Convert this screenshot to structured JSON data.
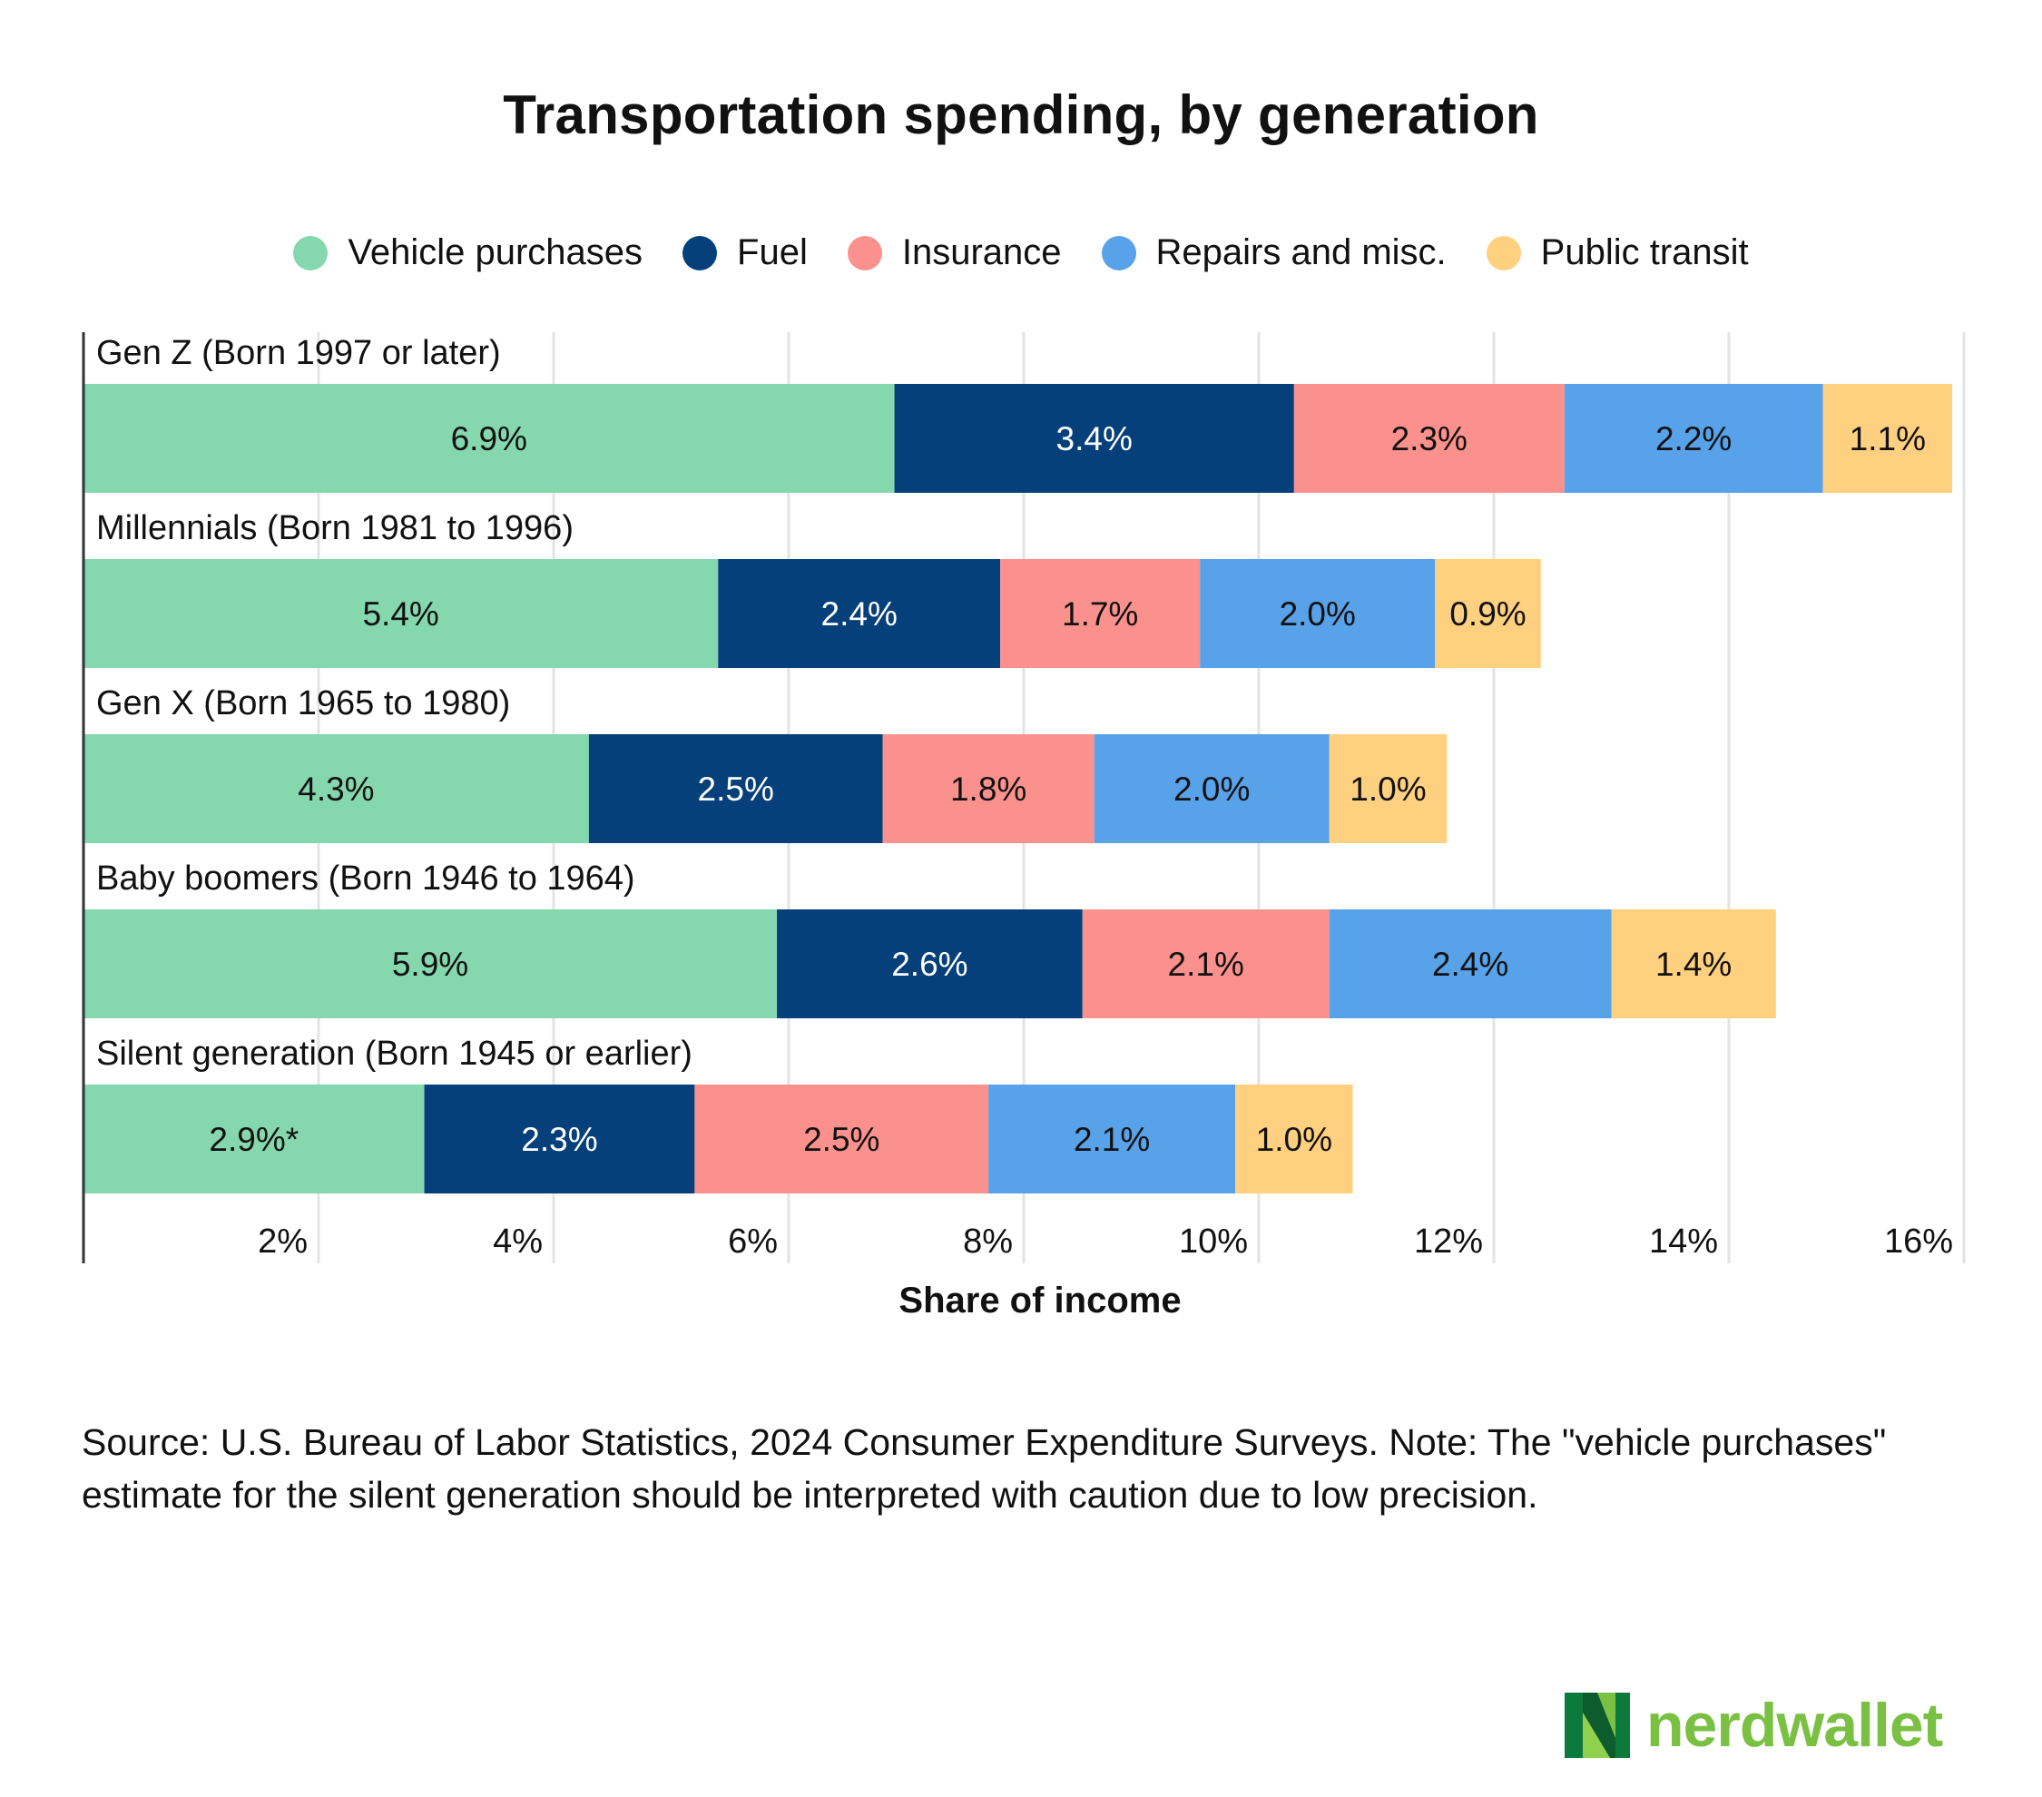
{
  "title": "Transportation spending, by generation",
  "source": "Source: U.S. Bureau of Labor Statistics, 2024 Consumer Expenditure Surveys. Note: The \"vehicle purchases\" estimate for the silent generation should be interpreted with caution due to low precision.",
  "logo": {
    "text": "nerdwallet",
    "icon": "nerdwallet-n-icon"
  },
  "legend": [
    {
      "label": "Vehicle purchases",
      "color": "#85d7ad"
    },
    {
      "label": "Fuel",
      "color": "#05407a"
    },
    {
      "label": "Insurance",
      "color": "#fb918d"
    },
    {
      "label": "Repairs and misc.",
      "color": "#57a2e8"
    },
    {
      "label": "Public transit",
      "color": "#fed07f"
    }
  ],
  "chart_data": {
    "type": "bar",
    "orientation": "horizontal",
    "stacked": true,
    "title": "Transportation spending, by generation",
    "xlabel": "Share of income",
    "ylabel": "",
    "xlim": [
      0,
      16
    ],
    "xticks": [
      2,
      4,
      6,
      8,
      10,
      12,
      14,
      16
    ],
    "xtick_labels": [
      "2%",
      "4%",
      "6%",
      "8%",
      "10%",
      "12%",
      "14%",
      "16%"
    ],
    "grid": "vertical",
    "legend_position": "top",
    "categories": [
      "Gen Z (Born 1997 or later)",
      "Millennials (Born 1981 to 1996)",
      "Gen X (Born 1965 to 1980)",
      "Baby boomers (Born 1946 to 1964)",
      "Silent generation (Born 1945 or earlier)"
    ],
    "series": [
      {
        "name": "Vehicle purchases",
        "color": "#85d7ad",
        "text_color": "#111111",
        "values": [
          6.9,
          5.4,
          4.3,
          5.9,
          2.9
        ],
        "labels": [
          "6.9%",
          "5.4%",
          "4.3%",
          "5.9%",
          "2.9%*"
        ]
      },
      {
        "name": "Fuel",
        "color": "#05407a",
        "text_color": "#ffffff",
        "values": [
          3.4,
          2.4,
          2.5,
          2.6,
          2.3
        ],
        "labels": [
          "3.4%",
          "2.4%",
          "2.5%",
          "2.6%",
          "2.3%"
        ]
      },
      {
        "name": "Insurance",
        "color": "#fb918d",
        "text_color": "#111111",
        "values": [
          2.3,
          1.7,
          1.8,
          2.1,
          2.5
        ],
        "labels": [
          "2.3%",
          "1.7%",
          "1.8%",
          "2.1%",
          "2.5%"
        ]
      },
      {
        "name": "Repairs and misc.",
        "color": "#57a2e8",
        "text_color": "#111111",
        "values": [
          2.2,
          2.0,
          2.0,
          2.4,
          2.1
        ],
        "labels": [
          "2.2%",
          "2.0%",
          "2.0%",
          "2.4%",
          "2.1%"
        ]
      },
      {
        "name": "Public transit",
        "color": "#fed07f",
        "text_color": "#111111",
        "values": [
          1.1,
          0.9,
          1.0,
          1.4,
          1.0
        ],
        "labels": [
          "1.1%",
          "0.9%",
          "1.0%",
          "1.4%",
          "1.0%"
        ]
      }
    ]
  }
}
